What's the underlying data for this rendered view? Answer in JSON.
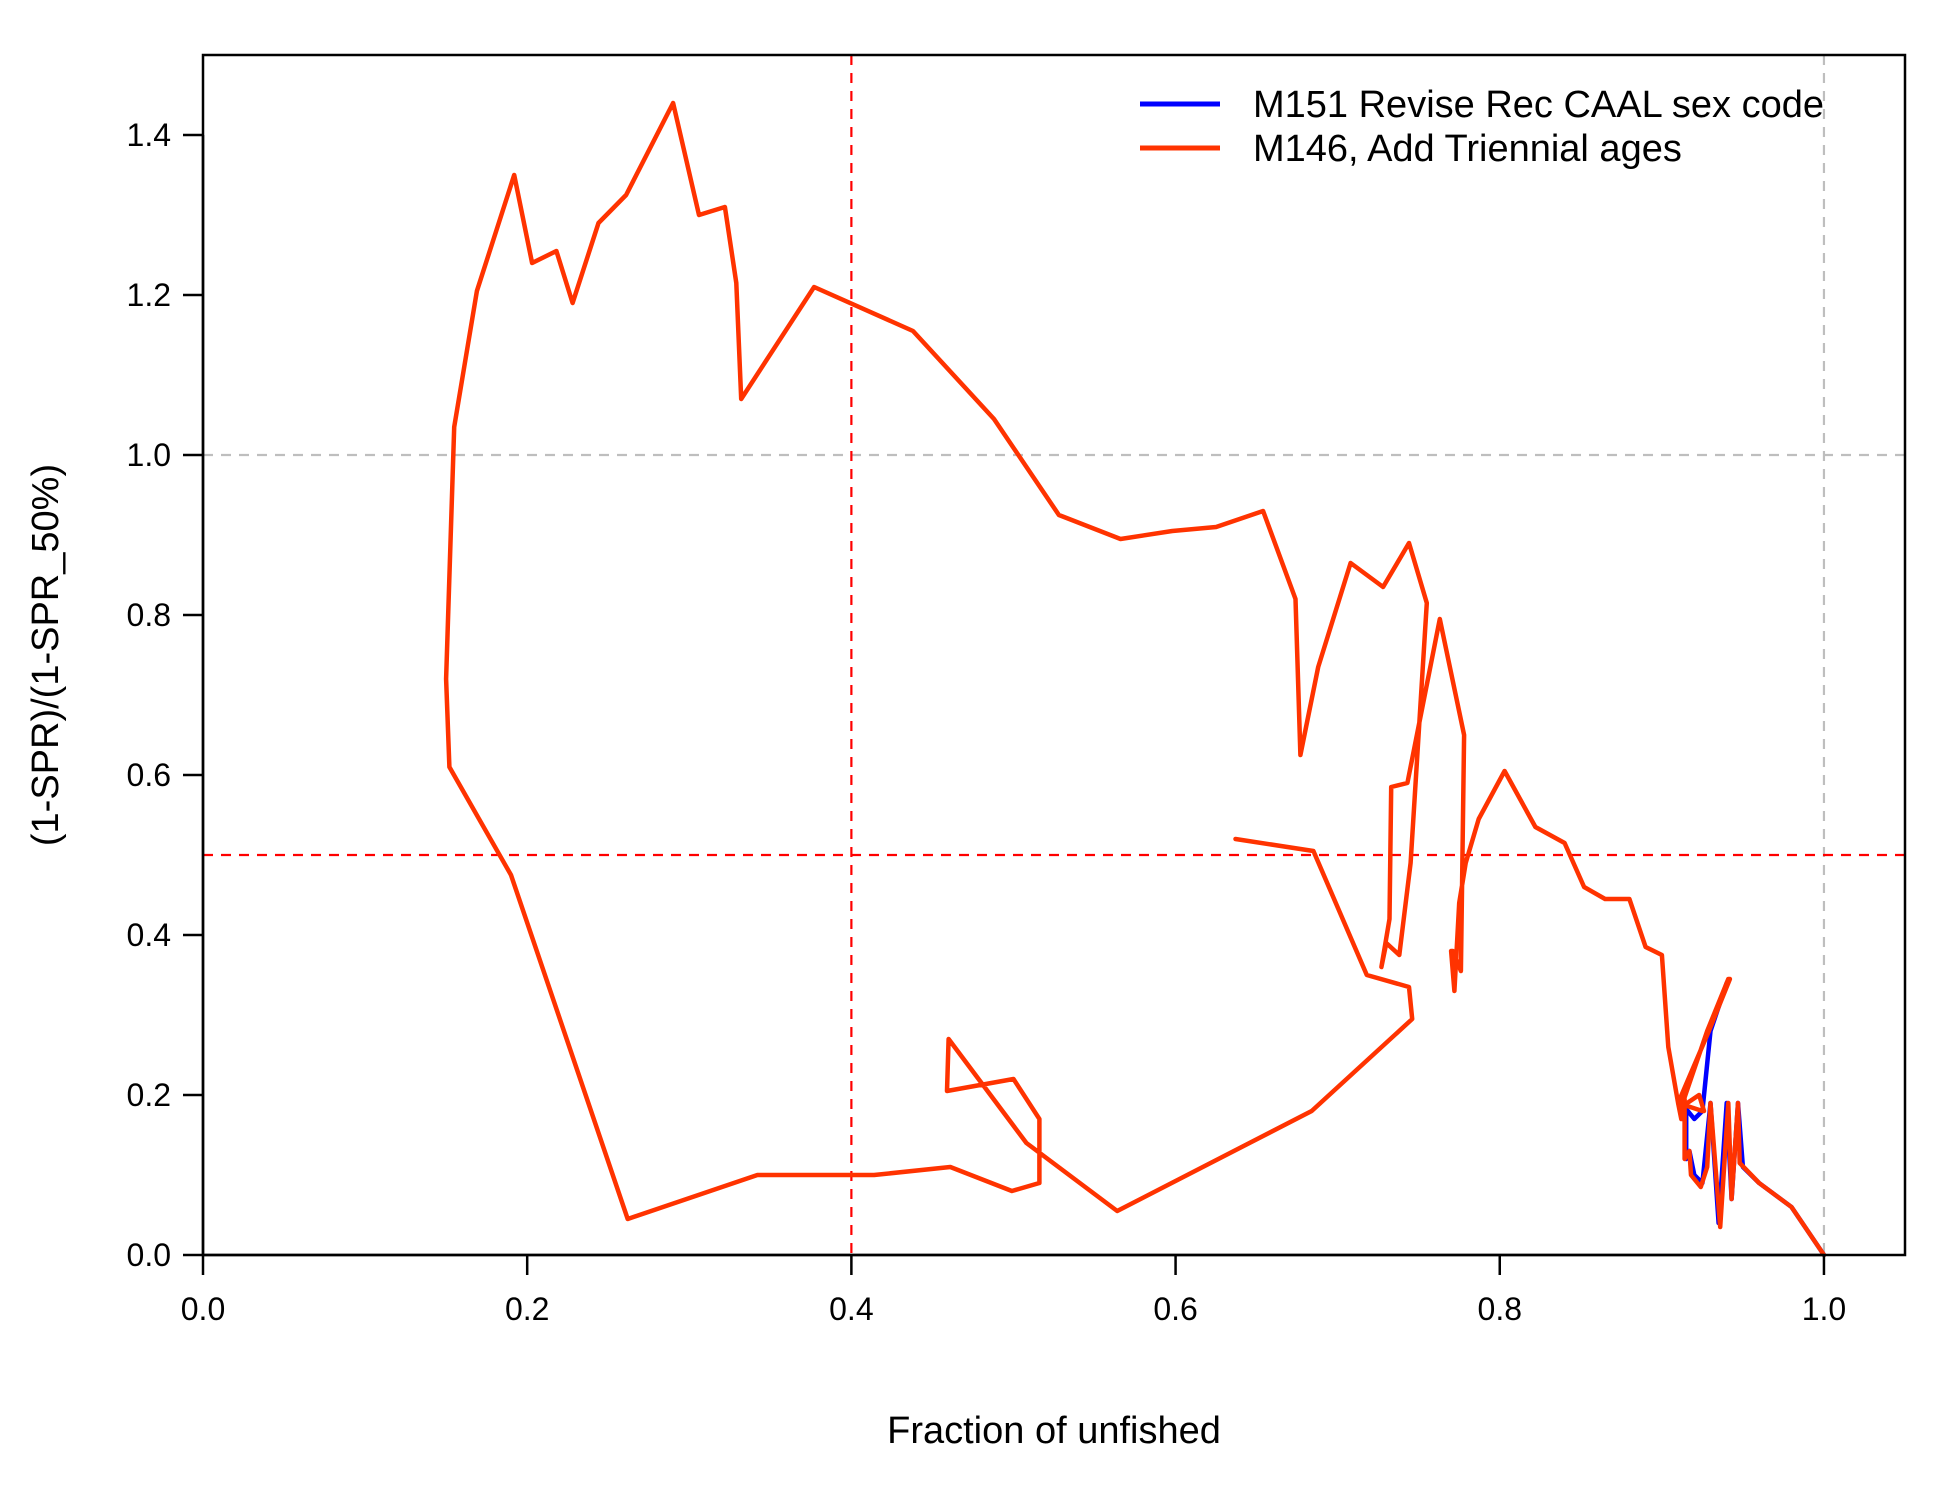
{
  "chart_data": {
    "type": "line",
    "xlabel": "Fraction of unfished",
    "ylabel": "(1-SPR)/(1-SPR_50%)",
    "xlim": [
      0.0,
      1.05
    ],
    "ylim": [
      0.0,
      1.5
    ],
    "x_ticks": [
      "0.0",
      "0.2",
      "0.4",
      "0.6",
      "0.8",
      "1.0"
    ],
    "y_ticks": [
      "0.0",
      "0.2",
      "0.4",
      "0.6",
      "0.8",
      "1.0",
      "1.2",
      "1.4"
    ],
    "x_tick_values": [
      0.0,
      0.2,
      0.4,
      0.6,
      0.8,
      1.0
    ],
    "y_tick_values": [
      0.0,
      0.2,
      0.4,
      0.6,
      0.8,
      1.0,
      1.2,
      1.4
    ],
    "legend_position": "top-right",
    "reference_lines": {
      "target_x": {
        "value": 0.4,
        "color": "#ff0000",
        "style": "dashed"
      },
      "target_y": {
        "value": 0.5,
        "color": "#ff0000",
        "style": "dashed"
      },
      "unfished_x": {
        "value": 1.0,
        "color": "#bebebe",
        "style": "dashed"
      },
      "spr50_y": {
        "value": 1.0,
        "color": "#bebebe",
        "style": "dashed"
      }
    },
    "series": [
      {
        "name": "M151 Revise Rec CAAL sex code",
        "color": "#0000ff",
        "points": [
          [
            1.0,
            0.0
          ],
          [
            0.98,
            0.06
          ],
          [
            0.96,
            0.09
          ],
          [
            0.95,
            0.11
          ],
          [
            0.947,
            0.19
          ],
          [
            0.943,
            0.07
          ],
          [
            0.94,
            0.19
          ],
          [
            0.935,
            0.04
          ],
          [
            0.93,
            0.19
          ],
          [
            0.925,
            0.09
          ],
          [
            0.92,
            0.1
          ],
          [
            0.917,
            0.13
          ],
          [
            0.915,
            0.12
          ],
          [
            0.915,
            0.19
          ],
          [
            0.913,
            0.17
          ],
          [
            0.912,
            0.19
          ],
          [
            0.92,
            0.17
          ],
          [
            0.925,
            0.18
          ],
          [
            0.93,
            0.28
          ],
          [
            0.94,
            0.34
          ]
        ]
      },
      {
        "name": "M146, Add Triennial ages",
        "color": "#ff3300",
        "points": [
          [
            1.0,
            0.0
          ],
          [
            0.98,
            0.06
          ],
          [
            0.96,
            0.09
          ],
          [
            0.948,
            0.115
          ],
          [
            0.947,
            0.19
          ],
          [
            0.943,
            0.07
          ],
          [
            0.941,
            0.19
          ],
          [
            0.936,
            0.035
          ],
          [
            0.93,
            0.19
          ],
          [
            0.928,
            0.11
          ],
          [
            0.924,
            0.085
          ],
          [
            0.918,
            0.1
          ],
          [
            0.917,
            0.13
          ],
          [
            0.914,
            0.12
          ],
          [
            0.914,
            0.195
          ],
          [
            0.912,
            0.17
          ],
          [
            0.91,
            0.19
          ],
          [
            0.925,
            0.18
          ],
          [
            0.926,
            0.18
          ],
          [
            0.923,
            0.2
          ],
          [
            0.912,
            0.185
          ],
          [
            0.928,
            0.28
          ],
          [
            0.941,
            0.345
          ],
          [
            0.942,
            0.345
          ],
          [
            0.929,
            0.28
          ],
          [
            0.91,
            0.19
          ],
          [
            0.904,
            0.26
          ],
          [
            0.9,
            0.375
          ],
          [
            0.89,
            0.385
          ],
          [
            0.88,
            0.445
          ],
          [
            0.865,
            0.445
          ],
          [
            0.852,
            0.46
          ],
          [
            0.84,
            0.515
          ],
          [
            0.822,
            0.535
          ],
          [
            0.803,
            0.605
          ],
          [
            0.787,
            0.545
          ],
          [
            0.779,
            0.49
          ],
          [
            0.775,
            0.44
          ],
          [
            0.772,
            0.33
          ],
          [
            0.77,
            0.38
          ],
          [
            0.771,
            0.38
          ],
          [
            0.776,
            0.355
          ],
          [
            0.778,
            0.65
          ],
          [
            0.763,
            0.795
          ],
          [
            0.743,
            0.59
          ],
          [
            0.733,
            0.585
          ],
          [
            0.732,
            0.42
          ],
          [
            0.727,
            0.36
          ],
          [
            0.73,
            0.39
          ],
          [
            0.738,
            0.375
          ],
          [
            0.745,
            0.49
          ],
          [
            0.755,
            0.815
          ],
          [
            0.744,
            0.89
          ],
          [
            0.728,
            0.835
          ],
          [
            0.708,
            0.865
          ],
          [
            0.688,
            0.735
          ],
          [
            0.677,
            0.625
          ],
          [
            0.674,
            0.82
          ],
          [
            0.654,
            0.93
          ],
          [
            0.625,
            0.91
          ],
          [
            0.598,
            0.905
          ],
          [
            0.566,
            0.895
          ],
          [
            0.528,
            0.925
          ],
          [
            0.488,
            1.045
          ],
          [
            0.438,
            1.155
          ],
          [
            0.377,
            1.21
          ],
          [
            0.332,
            1.07
          ],
          [
            0.329,
            1.215
          ],
          [
            0.322,
            1.31
          ],
          [
            0.306,
            1.3
          ],
          [
            0.29,
            1.44
          ],
          [
            0.261,
            1.325
          ],
          [
            0.244,
            1.29
          ],
          [
            0.228,
            1.19
          ],
          [
            0.218,
            1.255
          ],
          [
            0.203,
            1.24
          ],
          [
            0.192,
            1.35
          ],
          [
            0.169,
            1.205
          ],
          [
            0.155,
            1.035
          ],
          [
            0.15,
            0.72
          ],
          [
            0.152,
            0.61
          ],
          [
            0.19,
            0.475
          ],
          [
            0.262,
            0.045
          ],
          [
            0.342,
            0.1
          ],
          [
            0.414,
            0.1
          ],
          [
            0.461,
            0.11
          ],
          [
            0.499,
            0.08
          ],
          [
            0.516,
            0.09
          ],
          [
            0.516,
            0.17
          ],
          [
            0.5,
            0.22
          ],
          [
            0.459,
            0.205
          ],
          [
            0.46,
            0.27
          ],
          [
            0.508,
            0.14
          ],
          [
            0.564,
            0.055
          ],
          [
            0.684,
            0.18
          ],
          [
            0.746,
            0.295
          ],
          [
            0.744,
            0.335
          ],
          [
            0.718,
            0.35
          ],
          [
            0.685,
            0.505
          ],
          [
            0.637,
            0.52
          ]
        ]
      }
    ]
  }
}
